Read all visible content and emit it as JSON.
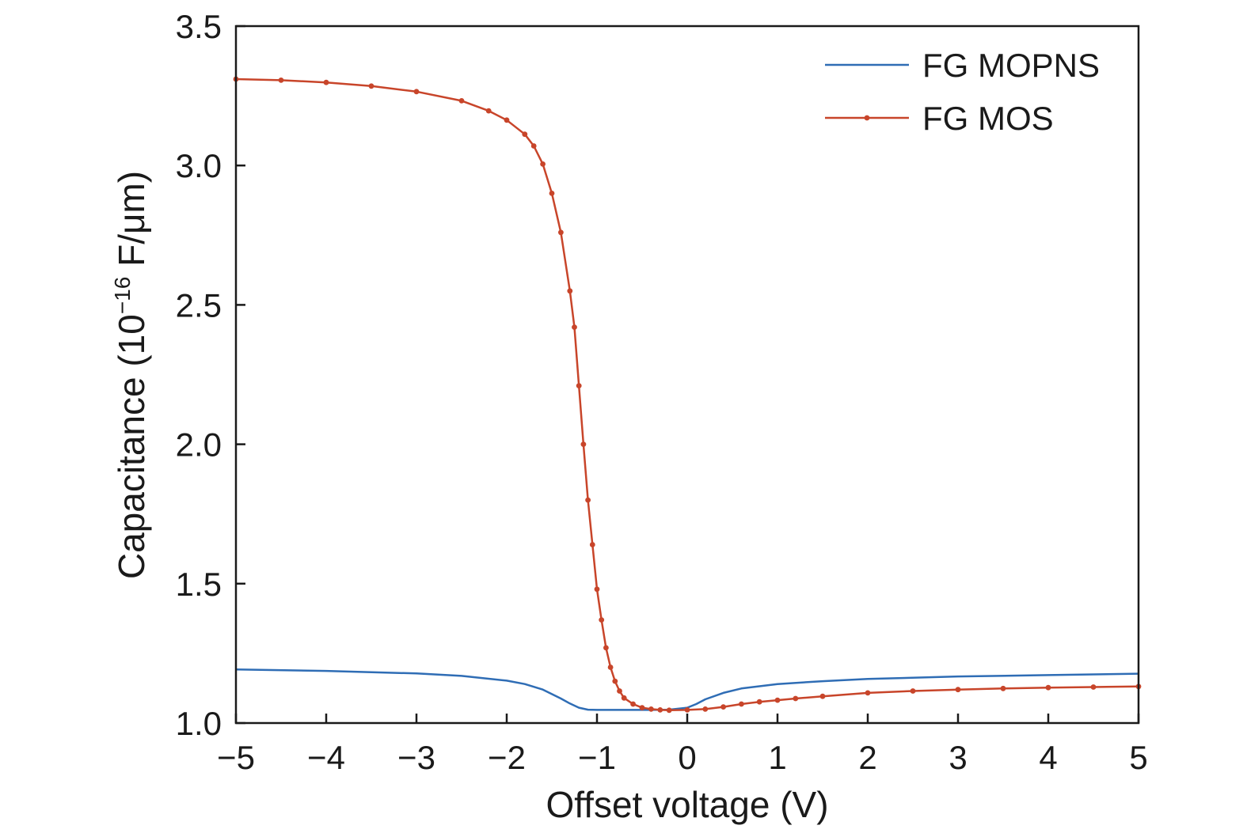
{
  "chart_data": {
    "type": "line",
    "title": "",
    "xlabel": "Offset voltage (V)",
    "ylabel_main": "Capacitance (10",
    "ylabel_sup": "−16",
    "ylabel_unit": " F/μm)",
    "xlim": [
      -5,
      5
    ],
    "ylim": [
      1.0,
      3.5
    ],
    "x_ticks": [
      -5,
      -4,
      -3,
      -2,
      -1,
      0,
      1,
      2,
      3,
      4,
      5
    ],
    "x_tick_labels": [
      "−5",
      "−4",
      "−3",
      "−2",
      "−1",
      "0",
      "1",
      "2",
      "3",
      "4",
      "5"
    ],
    "y_ticks": [
      1.0,
      1.5,
      2.0,
      2.5,
      3.0,
      3.5
    ],
    "y_tick_labels": [
      "1.0",
      "1.5",
      "2.0",
      "2.5",
      "3.0",
      "3.5"
    ],
    "grid": false,
    "legend_position": "top-right",
    "series": [
      {
        "name": "FG MOPNS",
        "color": "#2f6db5",
        "markers": false,
        "x": [
          -5,
          -4,
          -3,
          -2.5,
          -2,
          -1.8,
          -1.6,
          -1.4,
          -1.3,
          -1.2,
          -1.1,
          -1.0,
          -0.8,
          -0.6,
          -0.4,
          -0.2,
          0.0,
          0.1,
          0.2,
          0.4,
          0.6,
          1.0,
          1.5,
          2,
          3,
          4,
          5
        ],
        "values": [
          1.192,
          1.187,
          1.178,
          1.169,
          1.152,
          1.14,
          1.12,
          1.088,
          1.07,
          1.055,
          1.048,
          1.047,
          1.047,
          1.047,
          1.047,
          1.048,
          1.055,
          1.068,
          1.085,
          1.108,
          1.124,
          1.14,
          1.15,
          1.158,
          1.167,
          1.172,
          1.177
        ]
      },
      {
        "name": "FG MOS",
        "color": "#c8452a",
        "markers": true,
        "x": [
          -5,
          -4.5,
          -4,
          -3.5,
          -3,
          -2.5,
          -2.2,
          -2.0,
          -1.8,
          -1.7,
          -1.6,
          -1.5,
          -1.4,
          -1.3,
          -1.25,
          -1.2,
          -1.15,
          -1.1,
          -1.05,
          -1.0,
          -0.95,
          -0.9,
          -0.85,
          -0.8,
          -0.75,
          -0.7,
          -0.6,
          -0.5,
          -0.4,
          -0.3,
          -0.2,
          0.0,
          0.2,
          0.4,
          0.6,
          0.8,
          1.0,
          1.2,
          1.5,
          2.0,
          2.5,
          3.0,
          3.5,
          4.0,
          4.5,
          5.0
        ],
        "values": [
          3.31,
          3.306,
          3.298,
          3.285,
          3.265,
          3.232,
          3.196,
          3.163,
          3.112,
          3.07,
          3.005,
          2.9,
          2.76,
          2.55,
          2.42,
          2.21,
          2.0,
          1.8,
          1.64,
          1.48,
          1.37,
          1.27,
          1.2,
          1.15,
          1.115,
          1.09,
          1.068,
          1.055,
          1.05,
          1.047,
          1.046,
          1.047,
          1.05,
          1.058,
          1.068,
          1.076,
          1.082,
          1.088,
          1.096,
          1.108,
          1.115,
          1.12,
          1.124,
          1.127,
          1.129,
          1.131
        ]
      }
    ]
  }
}
